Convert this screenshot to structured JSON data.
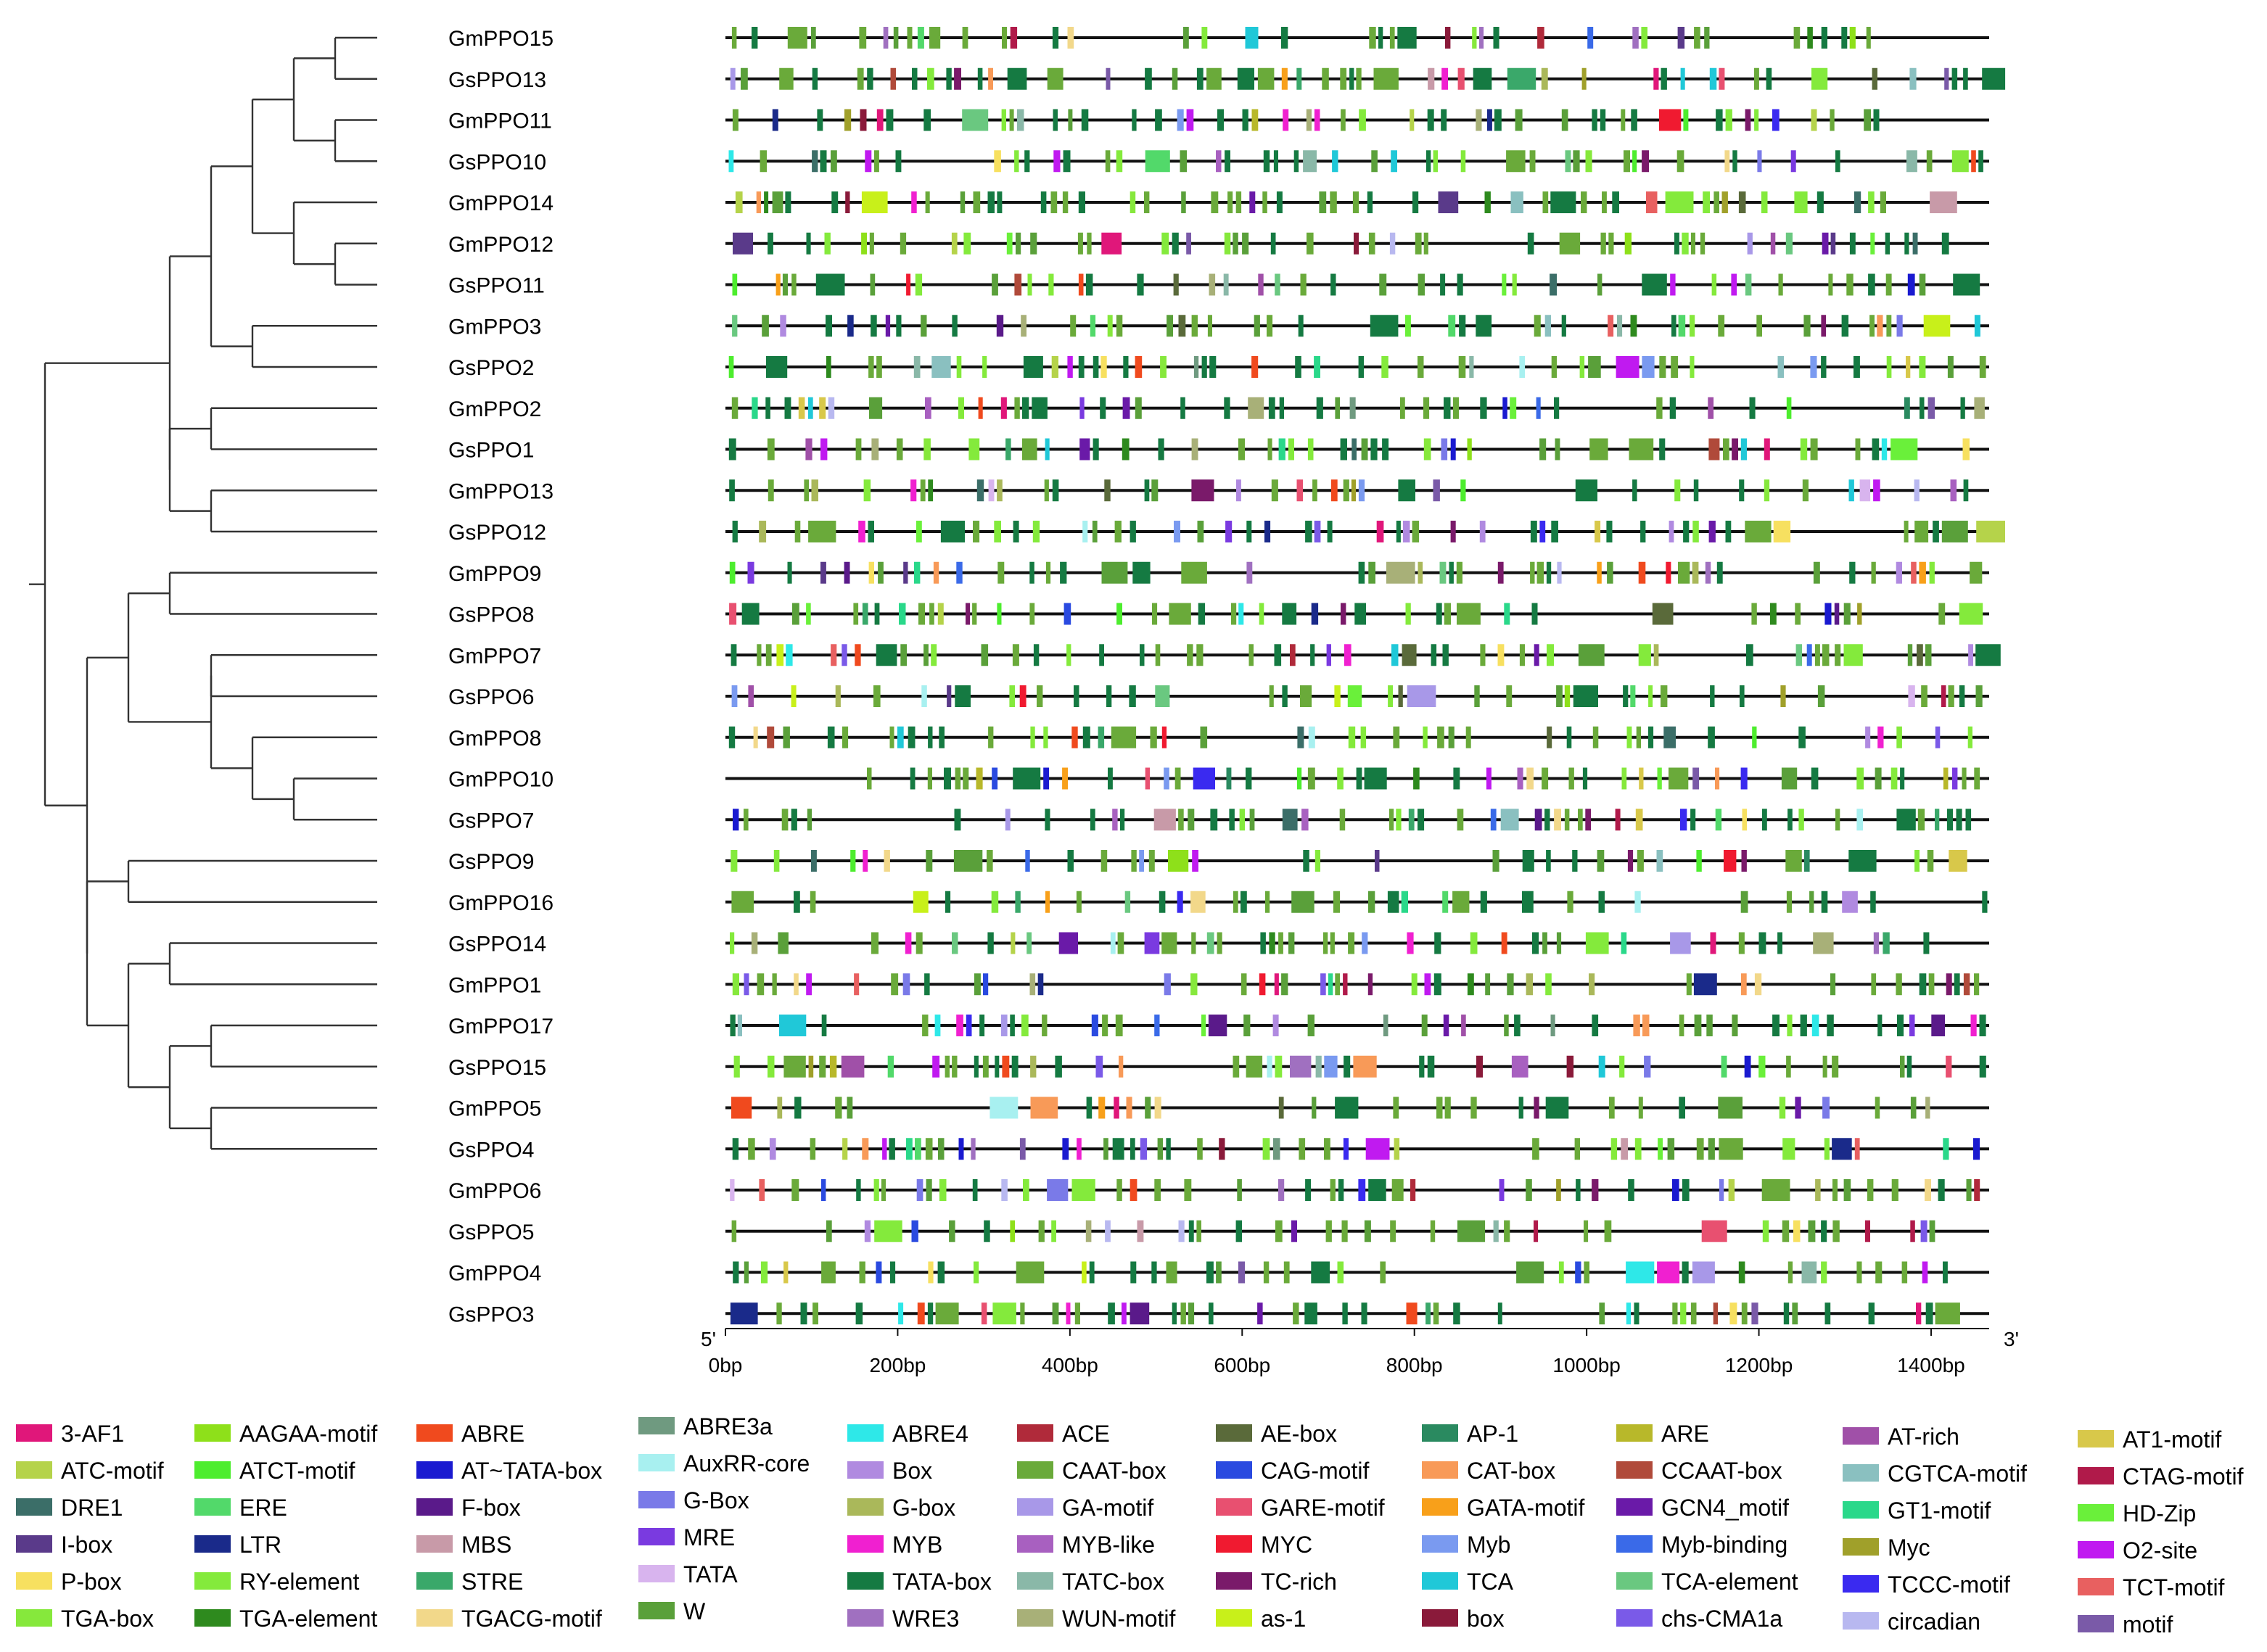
{
  "genes": [
    "GmPPO15",
    "GsPPO13",
    "GmPPO11",
    "GsPPO10",
    "GmPPO14",
    "GmPPO12",
    "GsPPO11",
    "GmPPO3",
    "GsPPO2",
    "GmPPO2",
    "GsPPO1",
    "GmPPO13",
    "GsPPO12",
    "GmPPO9",
    "GsPPO8",
    "GmPPO7",
    "GsPPO6",
    "GmPPO8",
    "GmPPO10",
    "GsPPO7",
    "GsPPO9",
    "GmPPO16",
    "GsPPO14",
    "GmPPO1",
    "GmPPO17",
    "GsPPO15",
    "GmPPO5",
    "GsPPO4",
    "GmPPO6",
    "GsPPO5",
    "GmPPO4",
    "GsPPO3"
  ],
  "axis": {
    "end5": "5'",
    "end3": "3'",
    "max_bp": 1500,
    "ticks": [
      {
        "bp": 0,
        "label": "0bp"
      },
      {
        "bp": 200,
        "label": "200bp"
      },
      {
        "bp": 400,
        "label": "400bp"
      },
      {
        "bp": 600,
        "label": "600bp"
      },
      {
        "bp": 800,
        "label": "800bp"
      },
      {
        "bp": 1000,
        "label": "1000bp"
      },
      {
        "bp": 1200,
        "label": "1200bp"
      },
      {
        "bp": 1400,
        "label": "1400bp"
      }
    ]
  },
  "legend": [
    {
      "label": "3-AF1",
      "color": "#e0177a"
    },
    {
      "label": "ATC-motif",
      "color": "#b5d34a"
    },
    {
      "label": "DRE1",
      "color": "#3b6e68"
    },
    {
      "label": "I-box",
      "color": "#5a3a8a"
    },
    {
      "label": "P-box",
      "color": "#f7e060"
    },
    {
      "label": "TGA-box",
      "color": "#86e83c"
    },
    {
      "label": "AAGAA-motif",
      "color": "#8ee01a"
    },
    {
      "label": "ATCT-motif",
      "color": "#4ded2e"
    },
    {
      "label": "ERE",
      "color": "#52d96a"
    },
    {
      "label": "LTR",
      "color": "#1a2a8a"
    },
    {
      "label": "RY-element",
      "color": "#84ea3c"
    },
    {
      "label": "TGA-element",
      "color": "#2e8a1e"
    },
    {
      "label": "ABRE",
      "color": "#f04a1e"
    },
    {
      "label": "AT~TATA-box",
      "color": "#1a1ad0"
    },
    {
      "label": "F-box",
      "color": "#5a1a8a"
    },
    {
      "label": "MBS",
      "color": "#c89aa8"
    },
    {
      "label": "STRE",
      "color": "#3aa86a"
    },
    {
      "label": "TGACG-motif",
      "color": "#f2d88a"
    },
    {
      "label": "ABRE3a",
      "color": "#6f9a80"
    },
    {
      "label": "AuxRR-core",
      "color": "#a8f0f0"
    },
    {
      "label": "G-Box",
      "color": "#7a7ae8"
    },
    {
      "label": "MRE",
      "color": "#7a3ae0"
    },
    {
      "label": "TATA",
      "color": "#d8b4ee"
    },
    {
      "label": "W",
      "color": "#5aa03a"
    },
    {
      "label": "ABRE4",
      "color": "#2ee8e8"
    },
    {
      "label": "Box",
      "color": "#b08ae0"
    },
    {
      "label": "G-box",
      "color": "#aab85a"
    },
    {
      "label": "MYB",
      "color": "#f020d0"
    },
    {
      "label": "TATA-box",
      "color": "#157a42"
    },
    {
      "label": "WRE3",
      "color": "#a070c0"
    },
    {
      "label": "ACE",
      "color": "#b02a3a"
    },
    {
      "label": "CAAT-box",
      "color": "#6aaa3a"
    },
    {
      "label": "GA-motif",
      "color": "#a898e8"
    },
    {
      "label": "MYB-like",
      "color": "#a860c0"
    },
    {
      "label": "TATC-box",
      "color": "#8ab8a8"
    },
    {
      "label": "WUN-motif",
      "color": "#a8b078"
    },
    {
      "label": "AE-box",
      "color": "#5a6a3a"
    },
    {
      "label": "CAG-motif",
      "color": "#2a4ae0"
    },
    {
      "label": "GARE-motif",
      "color": "#e85070"
    },
    {
      "label": "MYC",
      "color": "#f01a30"
    },
    {
      "label": "TC-rich",
      "color": "#7a1a6a"
    },
    {
      "label": "as-1",
      "color": "#c8f01a"
    },
    {
      "label": "AP-1",
      "color": "#2a8a60"
    },
    {
      "label": "CAT-box",
      "color": "#f89a58"
    },
    {
      "label": "GATA-motif",
      "color": "#f8a01a"
    },
    {
      "label": "Myb",
      "color": "#7a9af0"
    },
    {
      "label": "TCA",
      "color": "#20c8d8"
    },
    {
      "label": "box",
      "color": "#8a1a3a"
    },
    {
      "label": "ARE",
      "color": "#b8b82a"
    },
    {
      "label": "CCAAT-box",
      "color": "#b04a3a"
    },
    {
      "label": "GCN4_motif",
      "color": "#6a1aa8"
    },
    {
      "label": "Myb-binding",
      "color": "#3a6ae8"
    },
    {
      "label": "TCA-element",
      "color": "#6ac880"
    },
    {
      "label": "chs-CMA1a",
      "color": "#7a5ae8"
    },
    {
      "label": "AT-rich",
      "color": "#a050a8"
    },
    {
      "label": "CGTCA-motif",
      "color": "#8ac0c0"
    },
    {
      "label": "GT1-motif",
      "color": "#2ad88a"
    },
    {
      "label": "Myc",
      "color": "#a0a02a"
    },
    {
      "label": "TCCC-motif",
      "color": "#3a2af0"
    },
    {
      "label": "circadian",
      "color": "#b8b8f0"
    },
    {
      "label": "AT1-motif",
      "color": "#d8c84a"
    },
    {
      "label": "CTAG-motif",
      "color": "#b01a4a"
    },
    {
      "label": "HD-Zip",
      "color": "#6af03a"
    },
    {
      "label": "O2-site",
      "color": "#c01af0"
    },
    {
      "label": "TCT-motif",
      "color": "#e86060"
    },
    {
      "label": "motif",
      "color": "#7a5aa8"
    }
  ]
}
